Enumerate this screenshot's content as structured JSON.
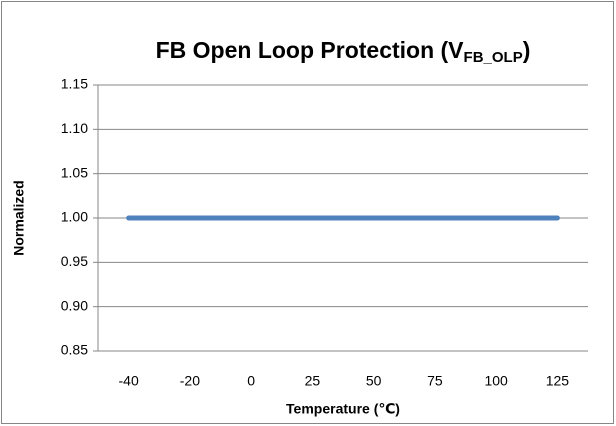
{
  "chart_data": {
    "type": "line",
    "title": "FB Open Loop Protection (V",
    "title_subscript": "FB_OLP",
    "title_suffix": ")",
    "x_label": "Temperature (℃)",
    "y_label": "Normalized",
    "categories": [
      "-40",
      "-20",
      "0",
      "25",
      "50",
      "75",
      "100",
      "125"
    ],
    "series": [
      {
        "name": "VFB_OLP",
        "color": "#4f81bd",
        "values": [
          1,
          1,
          1,
          1,
          1,
          1,
          1,
          1
        ]
      }
    ],
    "ylim": [
      0.85,
      1.15
    ],
    "yticks": [
      0.85,
      {
        "value": 0.9,
        "label": "0.90"
      },
      0.95,
      {
        "value": 1,
        "label": "1.00"
      },
      1.05,
      {
        "value": 1.1,
        "label": "1.10"
      },
      1.15
    ],
    "grid": true
  }
}
